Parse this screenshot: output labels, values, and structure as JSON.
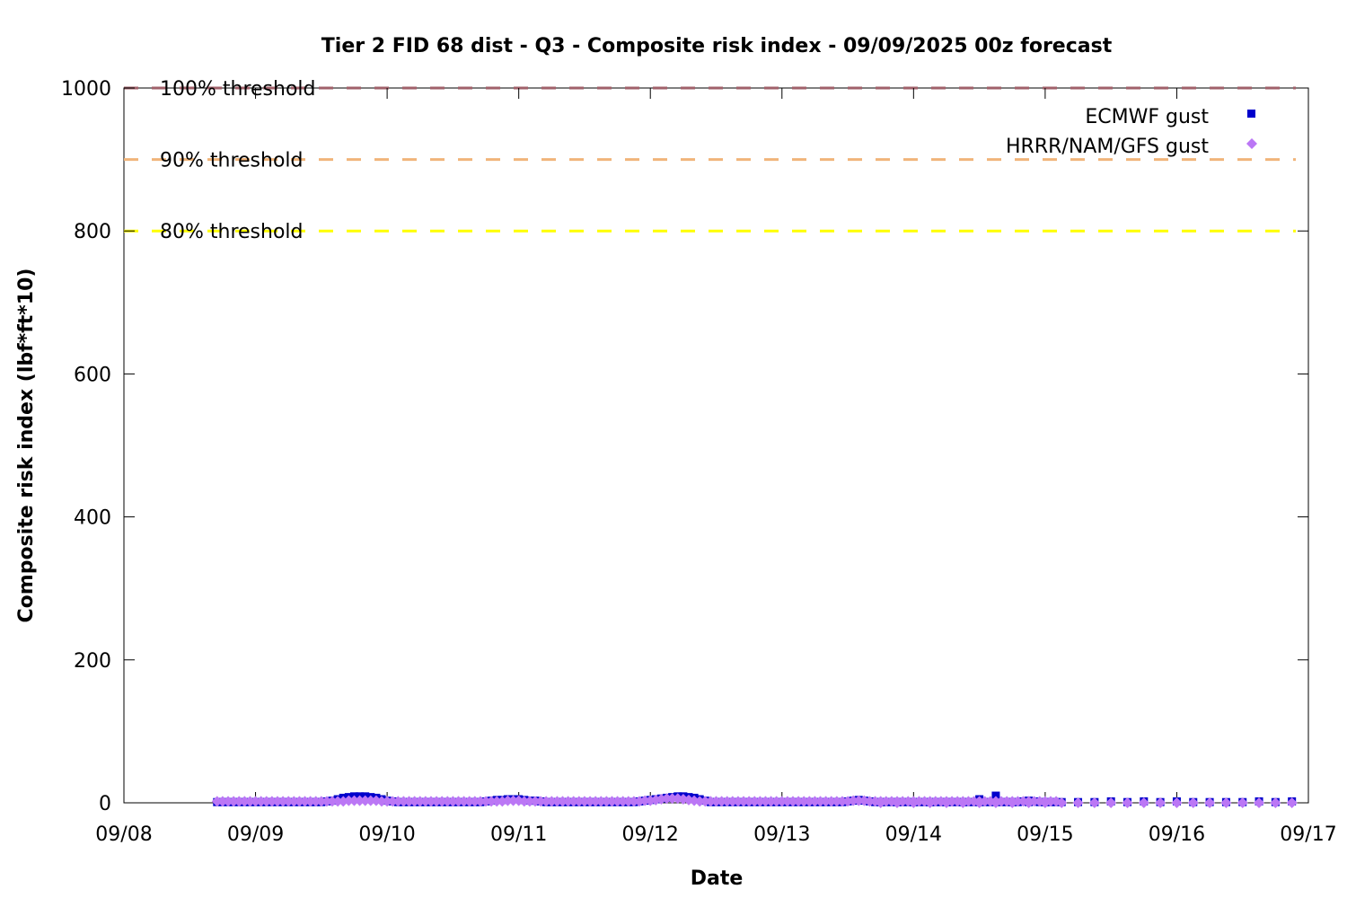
{
  "chart_data": {
    "type": "scatter",
    "title": "Tier 2 FID 68 dist - Q3 - Composite risk index - 09/09/2025 00z forecast",
    "xlabel": "Date",
    "ylabel": "Composite risk index (lbf*ft*10)",
    "xlim": [
      "2025-09-08 00:00",
      "2025-09-17 00:00"
    ],
    "ylim": [
      0,
      1000
    ],
    "x_ticks": [
      "09/08",
      "09/09",
      "09/10",
      "09/11",
      "09/12",
      "09/13",
      "09/14",
      "09/15",
      "09/16",
      "09/17"
    ],
    "y_ticks": [
      0,
      200,
      400,
      600,
      800,
      1000
    ],
    "legend_position": "top-right",
    "thresholds": [
      {
        "label": "100% threshold",
        "value": 1000,
        "color": "#a0606a"
      },
      {
        "label": "90% threshold",
        "value": 900,
        "color": "#f0b47a"
      },
      {
        "label": "80% threshold",
        "value": 800,
        "color": "#ffff00"
      }
    ],
    "series": [
      {
        "name": "ECMWF gust",
        "color": "#0000cc",
        "marker": "square",
        "segments": [
          {
            "start": "2025-09-08 17:00",
            "step_hours": 1,
            "values": [
              1,
              1,
              1,
              1,
              1,
              1,
              1,
              1,
              1,
              1,
              1,
              1,
              1,
              1,
              1,
              1,
              1,
              1,
              1,
              1,
              2,
              3,
              5,
              7,
              8,
              9,
              9,
              9,
              8,
              7,
              5,
              3,
              2,
              1,
              1,
              1,
              1,
              1,
              1,
              1,
              1,
              1,
              1,
              1,
              1,
              1,
              1,
              1,
              1,
              2,
              3,
              4,
              4,
              5,
              5,
              5,
              4,
              3,
              3,
              2,
              1,
              1,
              1,
              1,
              1,
              1,
              1,
              1,
              1,
              1,
              1,
              1,
              1,
              1,
              1,
              1,
              1,
              2,
              3,
              4,
              5,
              6,
              7,
              8,
              9,
              9,
              8,
              7,
              5,
              3,
              1,
              1,
              1,
              1,
              1,
              1,
              1,
              1,
              1,
              1,
              1,
              1,
              1,
              1,
              1,
              1,
              1,
              1,
              1,
              1,
              1,
              1,
              1,
              1,
              1,
              2,
              3,
              4,
              3,
              2,
              1,
              1,
              1,
              1,
              1,
              1,
              1,
              1,
              1,
              1,
              1,
              1,
              1,
              1,
              1,
              1,
              1,
              1,
              1,
              1,
              1,
              1,
              1,
              1,
              1,
              1,
              1,
              2,
              3,
              2,
              1,
              1,
              1,
              1
            ]
          },
          {
            "start": "2025-09-13 18:00",
            "step_hours": 3,
            "values": [
              1,
              1,
              1,
              1,
              1,
              1,
              5,
              10,
              1,
              1,
              1,
              1,
              1,
              1,
              2,
              1,
              2,
              1,
              2,
              1,
              1,
              1,
              1,
              2,
              1,
              2
            ]
          }
        ]
      },
      {
        "name": "HRRR/NAM/GFS gust",
        "color": "#bb77f5",
        "marker": "diamond",
        "segments": [
          {
            "start": "2025-09-08 17:00",
            "step_hours": 1,
            "values": [
              2,
              2,
              2,
              2,
              2,
              2,
              2,
              2,
              2,
              2,
              2,
              2,
              2,
              2,
              2,
              2,
              2,
              2,
              2,
              2,
              2,
              2,
              2,
              2,
              3,
              3,
              3,
              3,
              3,
              3,
              2,
              2,
              2,
              2,
              2,
              2,
              2,
              2,
              2,
              2,
              2,
              2,
              2,
              2,
              2,
              2,
              2,
              2,
              2,
              2,
              2,
              2,
              2,
              3,
              3,
              3,
              2,
              2,
              2,
              2,
              2,
              2,
              2,
              2,
              2,
              2,
              2,
              2,
              2,
              2,
              2,
              2,
              2,
              2,
              2,
              2,
              2,
              2,
              3,
              3,
              4,
              5,
              6,
              6,
              6,
              5,
              4,
              3,
              2,
              2,
              2,
              2,
              2,
              2,
              2,
              2,
              2,
              2,
              2,
              2,
              2,
              2,
              2,
              2,
              2,
              2,
              2,
              2,
              2,
              2,
              2,
              2,
              2,
              2,
              2,
              2,
              3,
              3,
              3,
              2,
              2,
              2,
              2,
              2,
              2,
              2,
              2,
              2,
              2,
              2,
              2,
              2,
              2,
              2,
              2,
              2,
              2,
              2,
              2,
              2,
              2,
              2,
              2,
              2,
              2,
              2,
              2,
              2,
              2,
              2,
              2,
              2,
              2,
              2
            ]
          },
          {
            "start": "2025-09-13 18:00",
            "step_hours": 3,
            "values": [
              0,
              0,
              0,
              0,
              0,
              0,
              0,
              0,
              0,
              0,
              0,
              0,
              0,
              0,
              0,
              0,
              0,
              0,
              0,
              0,
              0,
              0,
              0,
              0,
              0,
              0
            ]
          }
        ]
      }
    ]
  }
}
